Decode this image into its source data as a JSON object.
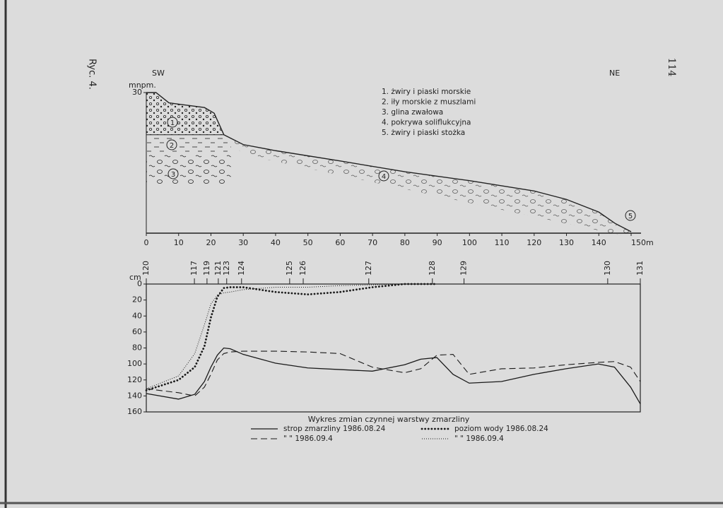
{
  "figure_label": "Ryc. 4.",
  "page_number": "114",
  "chart_data": [
    {
      "type": "area",
      "left_label": "SW",
      "right_label": "NE",
      "y_label": "mnpm.",
      "x": [
        0,
        3,
        7,
        18,
        21,
        24,
        30,
        40,
        60,
        80,
        100,
        120,
        130,
        140,
        145,
        150
      ],
      "values": [
        30,
        30,
        27.8,
        26.8,
        25.6,
        21,
        18.9,
        17.6,
        15.4,
        13.1,
        11.2,
        9,
        7.2,
        4.5,
        2.1,
        0.3
      ],
      "color": "#222222",
      "xlim": [
        0,
        150
      ],
      "ylim": [
        0,
        30
      ],
      "xticks": [
        0,
        10,
        20,
        30,
        40,
        50,
        60,
        70,
        80,
        90,
        100,
        110,
        120,
        130,
        140,
        {
          "value": 150,
          "label": "150m"
        }
      ],
      "yticks": [
        30
      ],
      "legend_items": [
        "1. żwiry i piaski morskie",
        "2. iły morskie z muszlami",
        "3. glina zwałowa",
        "4. pokrywa soliflukcyjna",
        "5. żwiry i piaski stożka"
      ],
      "layer_labels": [
        "1",
        "2",
        "3",
        "4",
        "5"
      ]
    },
    {
      "type": "line",
      "title": "Wykres zmian czynnej warstwy zmarzliny",
      "y_label": "cm",
      "y_inverted": true,
      "x": [
        0,
        10,
        15,
        18,
        20,
        22,
        24,
        26,
        30,
        40,
        50,
        60,
        70,
        80,
        85,
        90,
        95,
        100,
        110,
        120,
        130,
        140,
        145,
        150,
        153
      ],
      "xlim": [
        0,
        153
      ],
      "ylim": [
        0,
        160
      ],
      "yticks": [
        0,
        20,
        40,
        60,
        80,
        100,
        120,
        140,
        160
      ],
      "xticks": [
        {
          "value": 0,
          "label": "120"
        },
        {
          "value": 14.9,
          "label": "117"
        },
        {
          "value": 18.8,
          "label": "119"
        },
        {
          "value": 22.3,
          "label": "121"
        },
        {
          "value": 24.9,
          "label": "123"
        },
        {
          "value": 29.5,
          "label": "124"
        },
        {
          "value": 44.4,
          "label": "125"
        },
        {
          "value": 48.6,
          "label": "126"
        },
        {
          "value": 68.9,
          "label": "127"
        },
        {
          "value": 88.6,
          "label": "128"
        },
        {
          "value": 98.4,
          "label": "129"
        },
        {
          "value": 142.9,
          "label": "130"
        },
        {
          "value": 153,
          "label": "131"
        }
      ],
      "series": [
        {
          "name": "strop zmarzliny 1986.08.24",
          "color": "#1a1a1a",
          "style": "solid",
          "values": [
            137,
            144,
            138,
            122,
            104,
            89,
            80,
            81,
            88,
            99,
            105,
            107,
            109,
            101,
            94,
            92,
            113,
            124,
            122,
            113,
            106,
            100,
            104,
            129,
            150
          ]
        },
        {
          "name": "\"   \"   1986.09.4",
          "color": "#1a1a1a",
          "style": "dashed",
          "values": [
            131,
            136,
            140,
            129,
            113,
            95,
            87,
            85,
            84,
            84,
            85,
            87,
            104,
            111,
            106,
            89,
            88,
            113,
            106,
            105,
            101,
            98,
            97,
            104,
            122
          ]
        },
        {
          "name": "poziom wody 1986.08.24",
          "color": "#1a1a1a",
          "style": "bold-dotted",
          "values": [
            133,
            120,
            104,
            78,
            42,
            16,
            5,
            4,
            4,
            10,
            13,
            10,
            4,
            0,
            0,
            0,
            null,
            null,
            null,
            null,
            null,
            null,
            null,
            null,
            null
          ]
        },
        {
          "name": "\"   \"   1986.09.4",
          "color": "#1a1a1a",
          "style": "fine-dotted",
          "values": [
            131,
            115,
            87,
            51,
            25,
            14,
            11,
            10,
            7,
            4,
            4,
            2,
            1,
            0,
            null,
            null,
            null,
            null,
            null,
            null,
            null,
            null,
            null,
            null,
            null
          ]
        }
      ]
    }
  ]
}
